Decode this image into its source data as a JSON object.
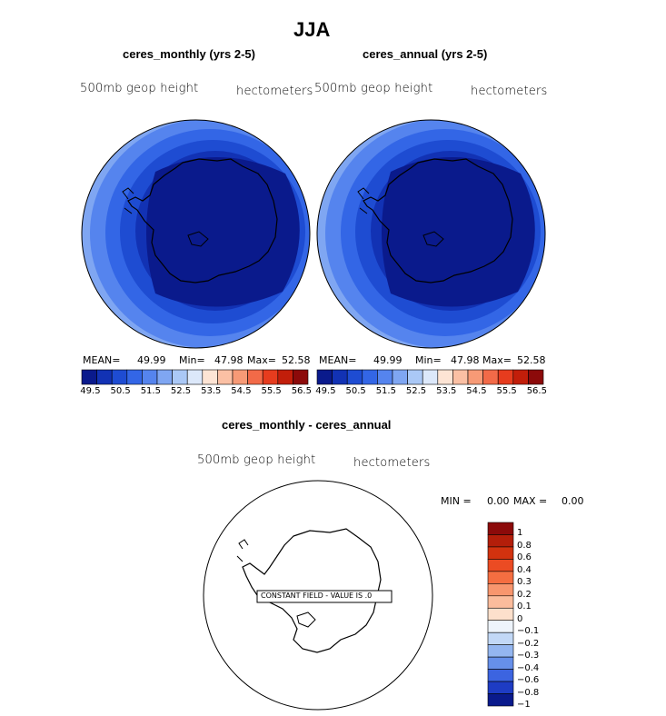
{
  "figure": {
    "title": "JJA"
  },
  "panels": [
    {
      "title": "ceres_monthly (yrs 2-5)",
      "field_label": "500mb geop height",
      "units_label": "hectometers",
      "stats": {
        "mean_label": "MEAN=",
        "mean": "49.99",
        "min_label": "Min=",
        "min": "47.98",
        "max_label": "Max=",
        "max": "52.58"
      }
    },
    {
      "title": "ceres_annual (yrs 2-5)",
      "field_label": "500mb geop height",
      "units_label": "hectometers",
      "stats": {
        "mean_label": "MEAN=",
        "mean": "49.99",
        "min_label": "Min=",
        "min": "47.98",
        "max_label": "Max=",
        "max": "52.58"
      }
    }
  ],
  "diff_panel": {
    "title": "ceres_monthly - ceres_annual",
    "field_label": "500mb geop height",
    "units_label": "hectometers",
    "stats": {
      "min_label": "MIN =",
      "min": "0.00",
      "max_label": "MAX =",
      "max": "0.00"
    },
    "annotation": "CONSTANT FIELD - VALUE IS .0"
  },
  "horizontal_colorbar": {
    "tick_labels": [
      "49.5",
      "50.5",
      "51.5",
      "52.5",
      "53.5",
      "54.5",
      "55.5",
      "56.5"
    ],
    "colors": [
      "#0a1a8c",
      "#1232b4",
      "#1e4cd2",
      "#3366e6",
      "#5584ee",
      "#7fa6f2",
      "#aac8f6",
      "#dce8fa",
      "#fde4d4",
      "#fbc0a4",
      "#f79a76",
      "#f26a48",
      "#e63c1e",
      "#c21e0a",
      "#8c0a0a"
    ]
  },
  "vertical_colorbar": {
    "tick_labels": [
      "1",
      "0.8",
      "0.6",
      "0.4",
      "0.3",
      "0.2",
      "0.1",
      "0",
      "−0.1",
      "−0.2",
      "−0.3",
      "−0.4",
      "−0.6",
      "−0.8",
      "−1"
    ],
    "colors": [
      "#8c0a0a",
      "#b41e0a",
      "#d2320f",
      "#eb4b23",
      "#f56e41",
      "#f8966e",
      "#fbbc9c",
      "#fde0cc",
      "#eef4fb",
      "#c2d8f6",
      "#94b6f0",
      "#6690ea",
      "#3c64e0",
      "#1e3cc4",
      "#0a1a8c"
    ]
  }
}
